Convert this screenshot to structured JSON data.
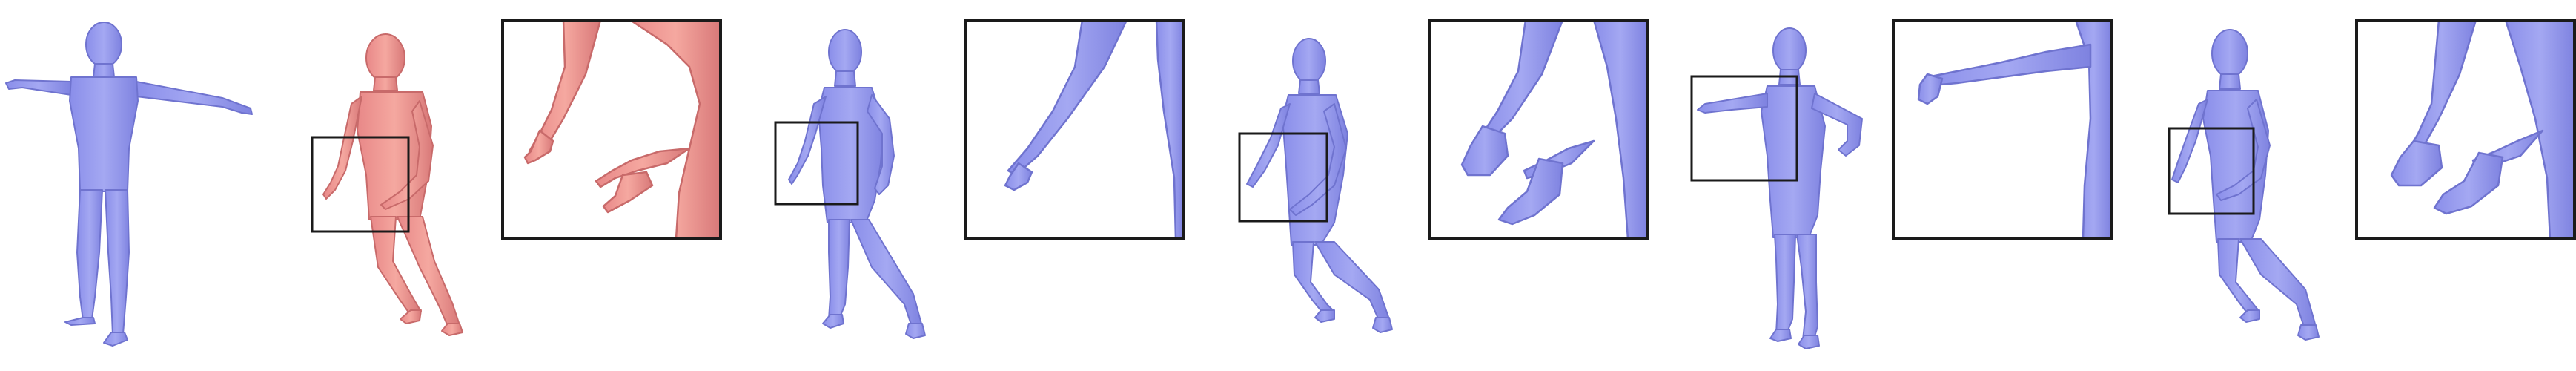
{
  "figure": {
    "colors": {
      "background": "#ffffff",
      "blue_body": "#9599ee",
      "blue_shade": "#7378d6",
      "pink_body": "#ee9696",
      "pink_shade": "#d27272",
      "frame": "#1a1a1a"
    },
    "panels": [
      {
        "kind": "t-pose-mesh",
        "color": "blue"
      },
      {
        "kind": "reference-mesh",
        "color": "pink",
        "has_inset_box": true
      },
      {
        "kind": "zoom-inset",
        "color": "pink"
      },
      {
        "kind": "result-mesh",
        "color": "blue",
        "has_inset_box": true
      },
      {
        "kind": "zoom-inset",
        "color": "blue"
      },
      {
        "kind": "result-mesh",
        "color": "blue",
        "has_inset_box": true
      },
      {
        "kind": "zoom-inset",
        "color": "blue"
      },
      {
        "kind": "result-mesh",
        "color": "blue",
        "has_inset_box": true
      },
      {
        "kind": "zoom-inset",
        "color": "blue"
      },
      {
        "kind": "result-mesh",
        "color": "blue",
        "has_inset_box": true
      },
      {
        "kind": "zoom-inset",
        "color": "blue"
      }
    ]
  }
}
